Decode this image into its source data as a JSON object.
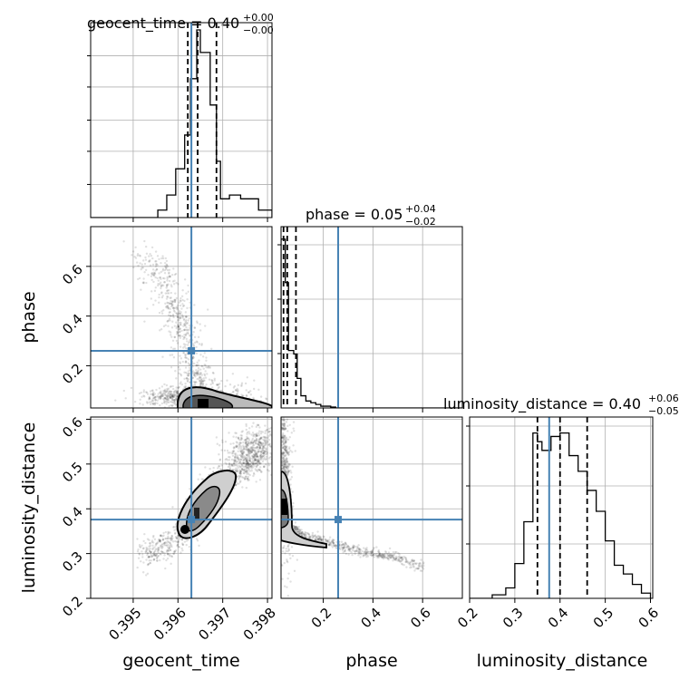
{
  "chart_data": {
    "type": "corner",
    "parameters": [
      "geocent_time",
      "phase",
      "luminosity_distance"
    ],
    "truths": {
      "geocent_time": 0.3963,
      "phase": 0.26,
      "luminosity_distance": 0.376
    },
    "colors": {
      "truth": "#4682b4",
      "hist": "#000000",
      "grid": "#b0b0b0",
      "scatter": "#000000"
    },
    "grid": true,
    "titles": [
      {
        "name": "geocent_time",
        "median": "0.40",
        "plus": "+0.00",
        "minus": "−0.00"
      },
      {
        "name": "phase",
        "median": "0.05",
        "plus": "+0.04",
        "minus": "−0.02"
      },
      {
        "name": "luminosity_distance",
        "median": "0.40",
        "plus": "+0.06",
        "minus": "−0.05"
      }
    ],
    "axes": {
      "geocent_time": {
        "range": [
          0.39405,
          0.3981
        ],
        "ticks": [
          0.395,
          0.396,
          0.397,
          0.398
        ],
        "tick_labels": [
          "0.395",
          "0.396",
          "0.397",
          "0.398"
        ]
      },
      "phase": {
        "range": [
          0.03,
          0.76
        ],
        "ticks": [
          0.2,
          0.4,
          0.6
        ],
        "tick_labels": [
          "0.2",
          "0.4",
          "0.6"
        ]
      },
      "luminosity_distance": {
        "range": [
          0.2,
          0.605
        ],
        "ticks": [
          0.2,
          0.3,
          0.4,
          0.5,
          0.6
        ],
        "tick_labels": [
          "0.2",
          "0.3",
          "0.4",
          "0.5",
          "0.6"
        ]
      }
    },
    "hist_geocent_time": {
      "bin_edges": [
        0.39405,
        0.3946,
        0.39555,
        0.39575,
        0.39595,
        0.39615,
        0.39628,
        0.39642,
        0.3965,
        0.39672,
        0.39686,
        0.39695,
        0.39715,
        0.3974,
        0.3978,
        0.3981
      ],
      "values": [
        0,
        0,
        0.04,
        0.12,
        0.26,
        0.44,
        0.74,
        1.0,
        0.88,
        0.6,
        0.3,
        0.1,
        0.12,
        0.1,
        0.04
      ],
      "quantiles": [
        0.39622,
        0.39644,
        0.39686
      ]
    },
    "hist_phase": {
      "bin_edges": [
        0.03,
        0.047,
        0.06,
        0.081,
        0.095,
        0.11,
        0.13,
        0.15,
        0.17,
        0.19,
        0.21,
        0.23,
        0.25,
        0.3,
        0.76
      ],
      "values": [
        0.97,
        0.72,
        0.33,
        0.31,
        0.17,
        0.07,
        0.04,
        0.03,
        0.02,
        0.01,
        0.01,
        0.005,
        0,
        0
      ],
      "quantiles": [
        0.04,
        0.055,
        0.09
      ]
    },
    "hist_luminosity_distance": {
      "bin_edges": [
        0.2,
        0.25,
        0.28,
        0.3,
        0.32,
        0.34,
        0.35,
        0.36,
        0.38,
        0.4,
        0.42,
        0.44,
        0.46,
        0.48,
        0.5,
        0.52,
        0.54,
        0.56,
        0.58,
        0.6
      ],
      "values": [
        0,
        0.02,
        0.06,
        0.2,
        0.44,
        0.95,
        0.9,
        0.85,
        0.93,
        0.95,
        0.82,
        0.73,
        0.62,
        0.5,
        0.33,
        0.19,
        0.14,
        0.08,
        0.03
      ],
      "quantiles": [
        0.35,
        0.4,
        0.46
      ]
    },
    "scatter_geocent_time_vs_phase": {
      "description_points": [
        [
          0.3952,
          0.62
        ],
        [
          0.3955,
          0.58
        ],
        [
          0.3958,
          0.5
        ],
        [
          0.396,
          0.42
        ],
        [
          0.3961,
          0.35
        ],
        [
          0.3962,
          0.28
        ],
        [
          0.3963,
          0.2
        ],
        [
          0.3964,
          0.14
        ],
        [
          0.3965,
          0.1
        ],
        [
          0.3967,
          0.07
        ],
        [
          0.397,
          0.06
        ],
        [
          0.3974,
          0.05
        ],
        [
          0.3978,
          0.04
        ]
      ]
    },
    "scatter_geocent_time_vs_luminosity_distance": {
      "description_points": [
        [
          0.3952,
          0.3
        ],
        [
          0.3956,
          0.31
        ],
        [
          0.3961,
          0.34
        ],
        [
          0.3963,
          0.37
        ],
        [
          0.3965,
          0.41
        ],
        [
          0.3967,
          0.45
        ],
        [
          0.397,
          0.47
        ],
        [
          0.3974,
          0.49
        ],
        [
          0.3978,
          0.52
        ],
        [
          0.398,
          0.55
        ]
      ]
    },
    "scatter_phase_vs_luminosity_distance": {
      "description_points": [
        [
          0.04,
          0.6
        ],
        [
          0.04,
          0.5
        ],
        [
          0.045,
          0.42
        ],
        [
          0.05,
          0.38
        ],
        [
          0.07,
          0.36
        ],
        [
          0.12,
          0.34
        ],
        [
          0.2,
          0.33
        ],
        [
          0.3,
          0.31
        ],
        [
          0.4,
          0.3
        ],
        [
          0.5,
          0.29
        ],
        [
          0.6,
          0.27
        ]
      ]
    }
  }
}
